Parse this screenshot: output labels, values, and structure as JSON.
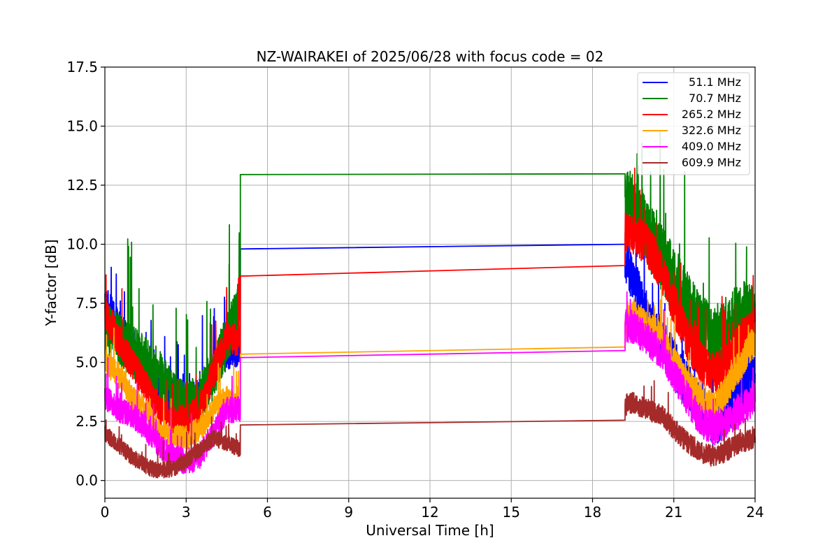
{
  "chart_data": {
    "type": "line",
    "title": "NZ-WAIRAKEI of 2025/06/28 with focus code = 02",
    "xlabel": "Universal Time [h]",
    "ylabel": "Y-factor [dB]",
    "xlim": [
      0,
      24
    ],
    "ylim": [
      -0.75,
      17.5
    ],
    "xticks": [
      0,
      3,
      6,
      9,
      12,
      15,
      18,
      21,
      24
    ],
    "yticks": [
      0.0,
      2.5,
      5.0,
      7.5,
      10.0,
      12.5,
      15.0,
      17.5
    ],
    "xtick_labels": [
      "0",
      "3",
      "6",
      "9",
      "12",
      "15",
      "18",
      "21",
      "24"
    ],
    "ytick_labels": [
      "0.0",
      "2.5",
      "5.0",
      "7.5",
      "10.0",
      "12.5",
      "15.0",
      "17.5"
    ],
    "grid": true,
    "legend_position": "top-right",
    "series": [
      {
        "name": " 51.1 MHz",
        "color": "#0000ff",
        "points": [
          [
            0,
            7.5
          ],
          [
            0.5,
            6.5
          ],
          [
            1,
            5.5
          ],
          [
            1.5,
            4.5
          ],
          [
            2,
            4.0
          ],
          [
            2.5,
            3.5
          ],
          [
            3,
            3.2
          ],
          [
            3.5,
            3.5
          ],
          [
            4,
            4.5
          ],
          [
            4.5,
            5.5
          ],
          [
            5,
            5.5
          ],
          [
            5,
            9.8
          ],
          [
            19.2,
            10.0
          ],
          [
            19.2,
            9.5
          ],
          [
            19.5,
            8.5
          ],
          [
            20,
            7.0
          ],
          [
            20.5,
            6.0
          ],
          [
            21,
            5.0
          ],
          [
            21.5,
            4.0
          ],
          [
            22,
            3.0
          ],
          [
            22.5,
            2.5
          ],
          [
            23,
            3.0
          ],
          [
            23.5,
            4.0
          ],
          [
            24,
            4.5
          ]
        ]
      },
      {
        "name": " 70.7 MHz",
        "color": "#008000",
        "points": [
          [
            0,
            6.5
          ],
          [
            0.5,
            6.0
          ],
          [
            1,
            5.5
          ],
          [
            1.5,
            5.0
          ],
          [
            2,
            4.5
          ],
          [
            2.5,
            3.5
          ],
          [
            3,
            3.0
          ],
          [
            3.5,
            3.5
          ],
          [
            4,
            4.5
          ],
          [
            4.5,
            6.0
          ],
          [
            5,
            7.5
          ],
          [
            5,
            12.95
          ],
          [
            19.2,
            12.98
          ],
          [
            19.2,
            12.0
          ],
          [
            19.5,
            11.5
          ],
          [
            20,
            10.5
          ],
          [
            20.5,
            9.5
          ],
          [
            21,
            8.5
          ],
          [
            21.5,
            7.5
          ],
          [
            22,
            6.5
          ],
          [
            22.5,
            6.0
          ],
          [
            23,
            6.5
          ],
          [
            23.5,
            7.0
          ],
          [
            24,
            7.0
          ]
        ]
      },
      {
        "name": "265.2 MHz",
        "color": "#ff0000",
        "points": [
          [
            0,
            7.0
          ],
          [
            0.5,
            6.0
          ],
          [
            1,
            5.0
          ],
          [
            1.5,
            4.0
          ],
          [
            2,
            3.0
          ],
          [
            2.5,
            2.5
          ],
          [
            3,
            2.5
          ],
          [
            3.5,
            3.0
          ],
          [
            4,
            4.5
          ],
          [
            4.5,
            6.0
          ],
          [
            5,
            6.0
          ],
          [
            5,
            8.65
          ],
          [
            19.2,
            9.1
          ],
          [
            19.2,
            10.5
          ],
          [
            19.5,
            10.5
          ],
          [
            20,
            10.0
          ],
          [
            20.5,
            9.0
          ],
          [
            21,
            7.5
          ],
          [
            21.5,
            6.0
          ],
          [
            22,
            5.0
          ],
          [
            22.5,
            4.5
          ],
          [
            23,
            5.0
          ],
          [
            23.5,
            6.0
          ],
          [
            24,
            6.5
          ]
        ]
      },
      {
        "name": "322.6 MHz",
        "color": "#ffa500",
        "points": [
          [
            0,
            5.0
          ],
          [
            0.5,
            4.5
          ],
          [
            1,
            3.5
          ],
          [
            1.5,
            3.0
          ],
          [
            2,
            2.0
          ],
          [
            2.5,
            1.8
          ],
          [
            3,
            1.8
          ],
          [
            3.5,
            2.2
          ],
          [
            4,
            3.0
          ],
          [
            4.5,
            3.5
          ],
          [
            5,
            3.0
          ],
          [
            5,
            5.35
          ],
          [
            19.2,
            5.65
          ],
          [
            19.2,
            6.5
          ],
          [
            19.5,
            7.0
          ],
          [
            20,
            6.5
          ],
          [
            20.5,
            6.0
          ],
          [
            21,
            5.0
          ],
          [
            21.5,
            4.0
          ],
          [
            22,
            3.5
          ],
          [
            22.5,
            3.0
          ],
          [
            23,
            4.0
          ],
          [
            23.5,
            5.0
          ],
          [
            24,
            6.0
          ]
        ]
      },
      {
        "name": "409.0 MHz",
        "color": "#ff00ff",
        "points": [
          [
            0,
            3.5
          ],
          [
            0.5,
            3.0
          ],
          [
            1,
            2.8
          ],
          [
            1.5,
            2.2
          ],
          [
            2,
            1.5
          ],
          [
            2.5,
            1.0
          ],
          [
            3,
            0.8
          ],
          [
            3.5,
            1.0
          ],
          [
            4,
            2.0
          ],
          [
            4.5,
            3.0
          ],
          [
            5,
            3.0
          ],
          [
            5,
            5.2
          ],
          [
            19.2,
            5.5
          ],
          [
            19.2,
            6.5
          ],
          [
            19.5,
            6.5
          ],
          [
            20,
            6.0
          ],
          [
            20.5,
            5.5
          ],
          [
            21,
            4.5
          ],
          [
            21.5,
            3.5
          ],
          [
            22,
            2.5
          ],
          [
            22.5,
            2.2
          ],
          [
            23,
            2.5
          ],
          [
            23.5,
            3.0
          ],
          [
            24,
            3.5
          ]
        ]
      },
      {
        "name": "609.9 MHz",
        "color": "#a52a2a",
        "points": [
          [
            0,
            2.0
          ],
          [
            0.5,
            1.5
          ],
          [
            1,
            1.0
          ],
          [
            1.5,
            0.6
          ],
          [
            2,
            0.4
          ],
          [
            2.5,
            0.5
          ],
          [
            3,
            0.8
          ],
          [
            3.5,
            1.3
          ],
          [
            4,
            1.8
          ],
          [
            4.5,
            1.6
          ],
          [
            5,
            1.3
          ],
          [
            5,
            2.35
          ],
          [
            19.2,
            2.55
          ],
          [
            19.2,
            3.2
          ],
          [
            19.5,
            3.3
          ],
          [
            20,
            3.0
          ],
          [
            20.5,
            2.8
          ],
          [
            21,
            2.2
          ],
          [
            21.5,
            1.6
          ],
          [
            22,
            1.2
          ],
          [
            22.5,
            1.0
          ],
          [
            23,
            1.3
          ],
          [
            23.5,
            1.6
          ],
          [
            24,
            1.8
          ]
        ]
      }
    ]
  }
}
